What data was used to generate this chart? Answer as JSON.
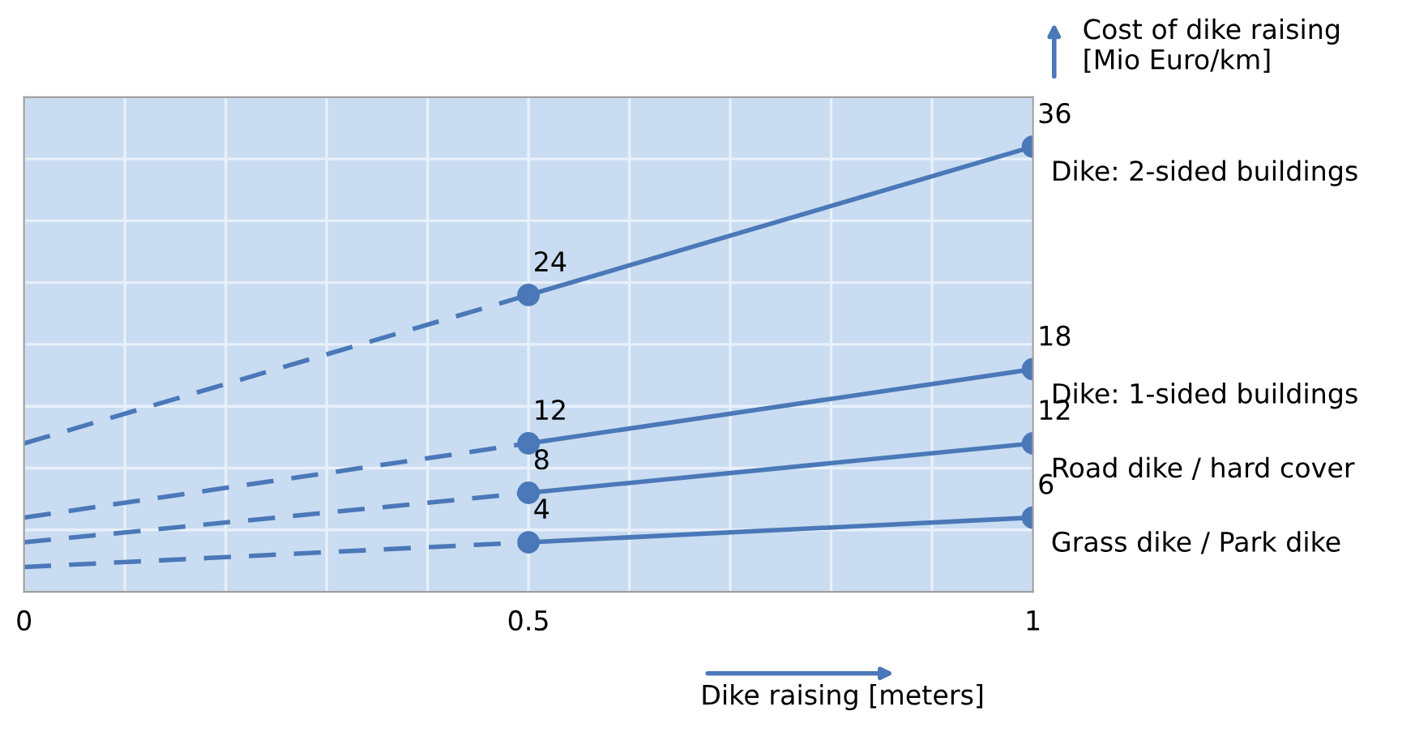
{
  "chart_data": {
    "type": "line",
    "xlabel": "Dike raising [meters]",
    "ylabel": "Cost of dike raising\n[Mio Euro/km]",
    "xlim": [
      0,
      1
    ],
    "xticks": [
      0,
      {
        "value": 0.1,
        "label": null
      },
      {
        "value": 0.2,
        "label": null
      },
      {
        "value": 0.3,
        "label": null
      },
      {
        "value": 0.4,
        "label": null
      },
      0.5,
      {
        "value": 0.6,
        "label": null
      },
      {
        "value": 0.7,
        "label": null
      },
      {
        "value": 0.8,
        "label": null
      },
      {
        "value": 0.9,
        "label": null
      },
      1
    ],
    "ylim": [
      0,
      40
    ],
    "yticks": [
      {
        "value": 5,
        "label": null
      },
      {
        "value": 10,
        "label": null
      },
      {
        "value": 15,
        "label": null
      },
      {
        "value": 20,
        "label": null
      },
      {
        "value": 25,
        "label": null
      },
      {
        "value": 30,
        "label": null
      },
      {
        "value": 35,
        "label": null
      }
    ],
    "tick_labels": "x",
    "grid": true,
    "legend": false,
    "series": [
      {
        "name": "Dike: 2-sided buildings",
        "color": "#4a78b8",
        "x": [
          0.5,
          1
        ],
        "values": [
          24,
          36
        ],
        "value_labels": [
          "24",
          "36"
        ],
        "marker": "circle",
        "line_style": "solid"
      },
      {
        "name": "Dike: 1-sided buildings",
        "color": "#4a78b8",
        "x": [
          0.5,
          1
        ],
        "values": [
          12,
          18
        ],
        "value_labels": [
          "12",
          "18"
        ],
        "marker": "circle",
        "line_style": "solid"
      },
      {
        "name": "Road dike / hard cover",
        "color": "#4a78b8",
        "x": [
          0.5,
          1
        ],
        "values": [
          8,
          12
        ],
        "value_labels": [
          "8",
          "12"
        ],
        "marker": "circle",
        "line_style": "solid"
      },
      {
        "name": "Grass dike / Park dike",
        "color": "#4a78b8",
        "x": [
          0.5,
          1
        ],
        "values": [
          4,
          6
        ],
        "value_labels": [
          "4",
          "6"
        ],
        "marker": "circle",
        "line_style": "solid"
      },
      {
        "color": "#4a78b8",
        "x": [
          0,
          0.5
        ],
        "values": [
          12,
          24
        ],
        "marker": "none",
        "line_style": "dashed"
      },
      {
        "color": "#4a78b8",
        "x": [
          0,
          0.5
        ],
        "values": [
          6,
          12
        ],
        "marker": "none",
        "line_style": "dashed"
      },
      {
        "color": "#4a78b8",
        "x": [
          0,
          0.5
        ],
        "values": [
          4,
          8
        ],
        "marker": "none",
        "line_style": "dashed"
      },
      {
        "color": "#4a78b8",
        "x": [
          0,
          0.5
        ],
        "values": [
          2,
          4
        ],
        "marker": "none",
        "line_style": "dashed"
      }
    ]
  }
}
